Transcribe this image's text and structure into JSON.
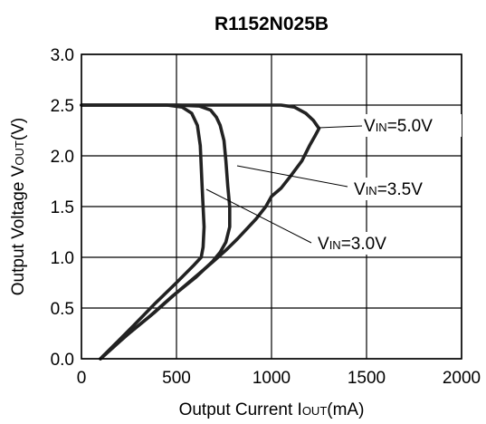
{
  "chart_data": {
    "type": "line",
    "title": "R1152N025B",
    "xlabel": {
      "main": "Output Current I",
      "sub": "OUT",
      "unit": "(mA)"
    },
    "ylabel": {
      "main": "Output Voltage V",
      "sub": "OUT",
      "unit": "(V)"
    },
    "xlim": [
      0,
      2000
    ],
    "ylim": [
      0,
      3.0
    ],
    "x_ticks": [
      "0",
      "500",
      "1000",
      "1500",
      "2000"
    ],
    "y_ticks": [
      "0.0",
      "0.5",
      "1.0",
      "1.5",
      "2.0",
      "2.5",
      "3.0"
    ],
    "grid": true,
    "series": [
      {
        "name": "V_IN=5.0V",
        "label": {
          "pre": "V",
          "sub": "IN",
          "post": "=5.0V"
        },
        "points": [
          [
            0,
            2.5
          ],
          [
            400,
            2.5
          ],
          [
            800,
            2.5
          ],
          [
            1050,
            2.5
          ],
          [
            1120,
            2.48
          ],
          [
            1180,
            2.42
          ],
          [
            1220,
            2.35
          ],
          [
            1250,
            2.27
          ],
          [
            1230,
            2.2
          ],
          [
            1200,
            2.1
          ],
          [
            1160,
            1.95
          ],
          [
            1100,
            1.8
          ],
          [
            1050,
            1.68
          ],
          [
            1000,
            1.6
          ],
          [
            970,
            1.5
          ],
          [
            920,
            1.38
          ],
          [
            870,
            1.28
          ],
          [
            820,
            1.18
          ],
          [
            760,
            1.07
          ],
          [
            700,
            0.97
          ],
          [
            620,
            0.84
          ],
          [
            500,
            0.65
          ],
          [
            380,
            0.45
          ],
          [
            250,
            0.25
          ],
          [
            170,
            0.12
          ],
          [
            100,
            0
          ]
        ]
      },
      {
        "name": "V_IN=3.5V",
        "label": {
          "pre": "V",
          "sub": "IN",
          "post": "=3.5V"
        },
        "points": [
          [
            0,
            2.5
          ],
          [
            500,
            2.5
          ],
          [
            620,
            2.49
          ],
          [
            680,
            2.45
          ],
          [
            710,
            2.38
          ],
          [
            730,
            2.3
          ],
          [
            750,
            2.15
          ],
          [
            760,
            1.95
          ],
          [
            770,
            1.7
          ],
          [
            780,
            1.5
          ],
          [
            780,
            1.3
          ],
          [
            760,
            1.15
          ],
          [
            730,
            1.05
          ],
          [
            690,
            0.96
          ],
          [
            600,
            0.8
          ],
          [
            480,
            0.62
          ],
          [
            360,
            0.42
          ],
          [
            230,
            0.22
          ],
          [
            160,
            0.1
          ],
          [
            100,
            0
          ]
        ]
      },
      {
        "name": "V_IN=3.0V",
        "label": {
          "pre": "V",
          "sub": "IN",
          "post": "=3.0V"
        },
        "points": [
          [
            0,
            2.5
          ],
          [
            450,
            2.5
          ],
          [
            530,
            2.48
          ],
          [
            580,
            2.42
          ],
          [
            610,
            2.3
          ],
          [
            625,
            2.1
          ],
          [
            630,
            1.9
          ],
          [
            635,
            1.7
          ],
          [
            640,
            1.5
          ],
          [
            645,
            1.3
          ],
          [
            640,
            1.1
          ],
          [
            630,
            1.0
          ],
          [
            590,
            0.92
          ],
          [
            500,
            0.75
          ],
          [
            390,
            0.55
          ],
          [
            270,
            0.32
          ],
          [
            180,
            0.15
          ],
          [
            110,
            0.02
          ]
        ]
      }
    ],
    "annotations": [
      {
        "series": 0,
        "pre": "V",
        "sub": "IN",
        "post": "=5.0V"
      },
      {
        "series": 1,
        "pre": "V",
        "sub": "IN",
        "post": "=3.5V"
      },
      {
        "series": 2,
        "pre": "V",
        "sub": "IN",
        "post": "=3.0V"
      }
    ]
  }
}
